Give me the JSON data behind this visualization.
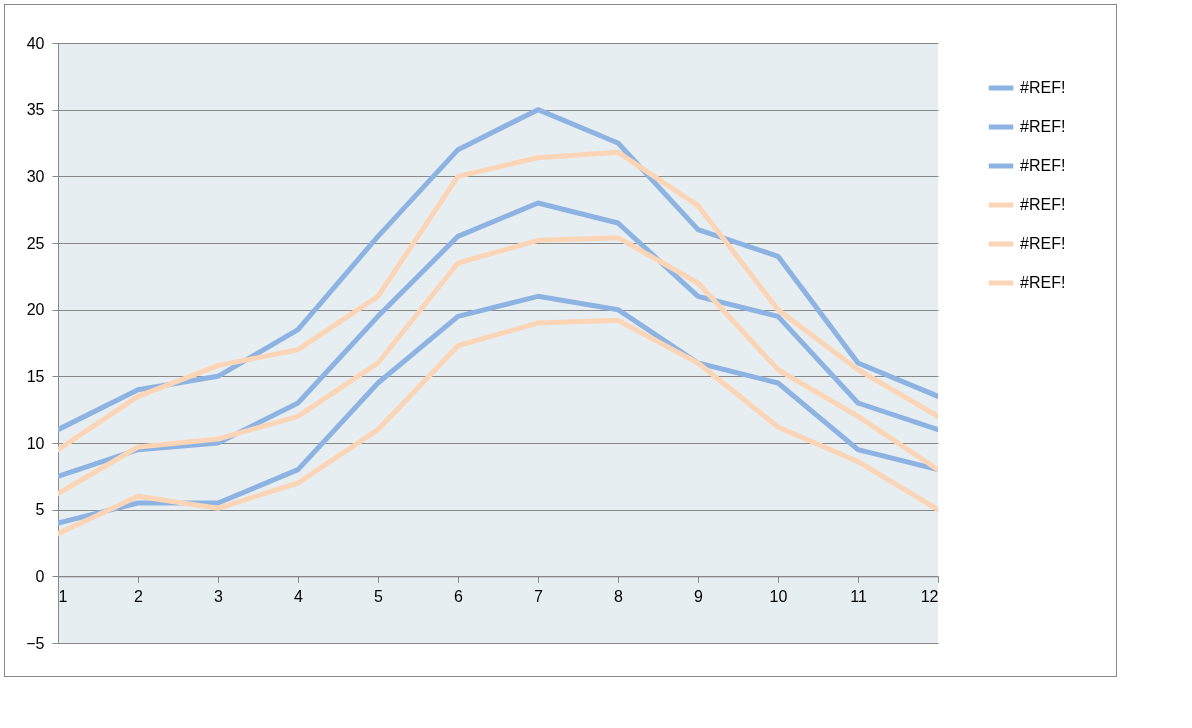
{
  "chart_data": {
    "type": "line",
    "x": [
      1,
      2,
      3,
      4,
      5,
      6,
      7,
      8,
      9,
      10,
      11,
      12
    ],
    "series": [
      {
        "name": "#REF!",
        "color": "#8db3e2",
        "values": [
          11,
          14,
          15,
          18.5,
          25.5,
          32,
          35,
          32.5,
          26,
          24,
          16,
          13.5
        ]
      },
      {
        "name": "#REF!",
        "color": "#8db3e2",
        "values": [
          7.5,
          9.5,
          10,
          13,
          19.5,
          25.5,
          28,
          26.5,
          21,
          19.5,
          13,
          11
        ]
      },
      {
        "name": "#REF!",
        "color": "#8db3e2",
        "values": [
          4,
          5.5,
          5.5,
          8,
          14.5,
          19.5,
          21,
          20,
          16,
          14.5,
          9.5,
          8
        ]
      },
      {
        "name": "#REF!",
        "color": "#fbd5b5",
        "values": [
          9.5,
          13.5,
          15.8,
          17,
          21,
          30,
          31.4,
          31.8,
          27.8,
          20,
          15.5,
          12
        ]
      },
      {
        "name": "#REF!",
        "color": "#fbd5b5",
        "values": [
          6.2,
          9.7,
          10.3,
          12,
          16,
          23.5,
          25.2,
          25.4,
          22,
          15.5,
          12,
          8
        ]
      },
      {
        "name": "#REF!",
        "color": "#fbd5b5",
        "values": [
          3.2,
          6,
          5.1,
          7,
          11,
          17.3,
          19,
          19.2,
          16,
          11.2,
          8.6,
          5
        ]
      }
    ],
    "xlim": [
      1,
      12
    ],
    "xticks": [
      1,
      2,
      3,
      4,
      5,
      6,
      7,
      8,
      9,
      10,
      11,
      12
    ],
    "ylim": [
      -5,
      40
    ],
    "yticks": [
      -5,
      0,
      5,
      10,
      15,
      20,
      25,
      30,
      35,
      40
    ],
    "grid": "y",
    "legend": "right",
    "marker": "none",
    "line_style": "solid"
  }
}
